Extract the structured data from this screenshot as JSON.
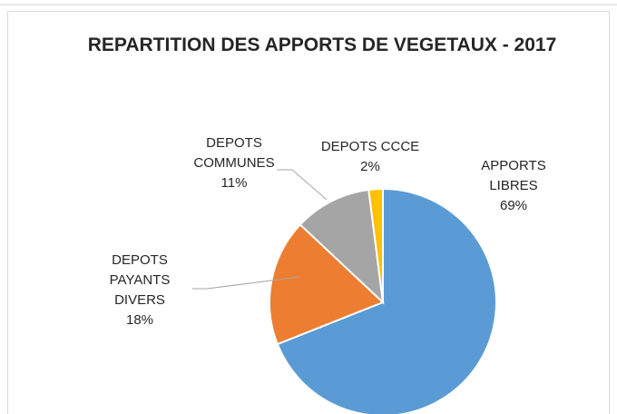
{
  "chart_data": {
    "type": "pie",
    "title": "REPARTITION DES APPORTS DE VEGETAUX - 2017",
    "categories": [
      "APPORTS LIBRES",
      "DEPOTS PAYANTS DIVERS",
      "DEPOTS COMMUNES",
      "DEPOTS CCCE"
    ],
    "values": [
      69,
      18,
      11,
      2
    ],
    "value_labels": [
      "69%",
      "18%",
      "11%",
      "2%"
    ],
    "colors": [
      "#5b9bd5",
      "#ed7d31",
      "#a5a5a5",
      "#ffc000"
    ]
  }
}
